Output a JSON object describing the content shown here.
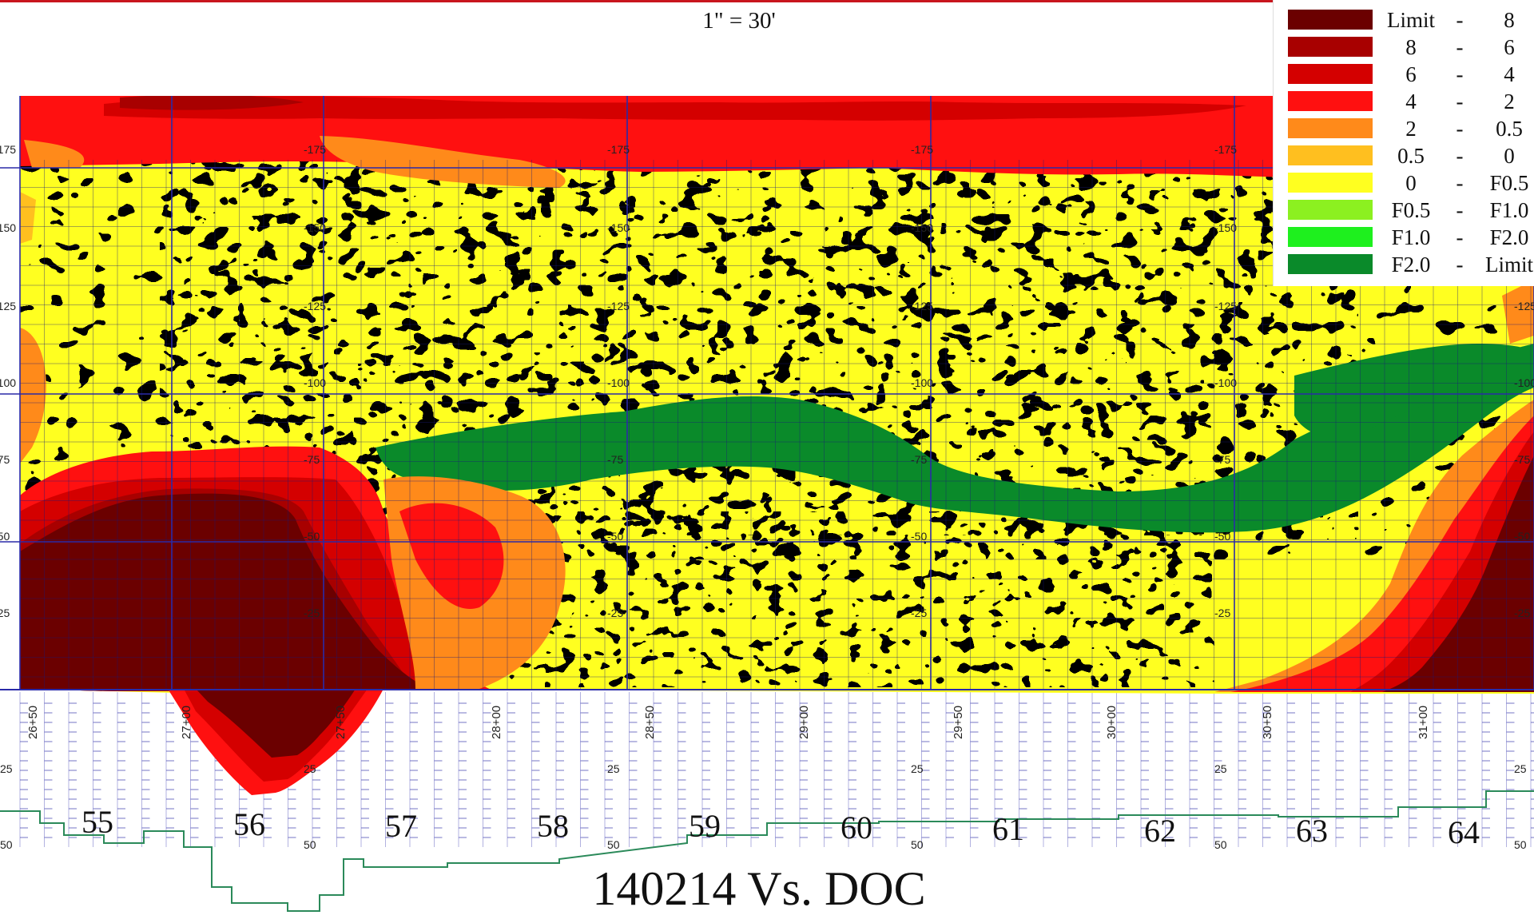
{
  "scale_label": "1\" = 30'",
  "title": "140214 Vs. DOC",
  "legend": [
    {
      "from": "Limit",
      "to": "8",
      "color": "#6b0000"
    },
    {
      "from": "8",
      "to": "6",
      "color": "#a80000"
    },
    {
      "from": "6",
      "to": "4",
      "color": "#d40000"
    },
    {
      "from": "4",
      "to": "2",
      "color": "#ff1010"
    },
    {
      "from": "2",
      "to": "0.5",
      "color": "#ff8a1a"
    },
    {
      "from": "0.5",
      "to": "0",
      "color": "#ffbf1f"
    },
    {
      "from": "0",
      "to": "F0.5",
      "color": "#ffff20"
    },
    {
      "from": "F0.5",
      "to": "F1.0",
      "color": "#8cf020"
    },
    {
      "from": "F1.0",
      "to": "F2.0",
      "color": "#1ef01e"
    },
    {
      "from": "F2.0",
      "to": "Limit",
      "color": "#0a8a2a"
    }
  ],
  "segments": [
    "55",
    "56",
    "57",
    "58",
    "59",
    "60",
    "61",
    "62",
    "63",
    "64"
  ],
  "stations": [
    "26+50",
    "27+00",
    "27+50",
    "28+00",
    "28+50",
    "29+00",
    "29+50",
    "30+00",
    "30+50",
    "31+00"
  ],
  "offset_labels": [
    "-175",
    "-150",
    "-125",
    "-100",
    "-75",
    "-50",
    "-25"
  ],
  "lower_labels": [
    "25",
    "50"
  ],
  "colors": {
    "grid_blue": "#2a2aa8",
    "green_line": "#2b8a5a"
  }
}
